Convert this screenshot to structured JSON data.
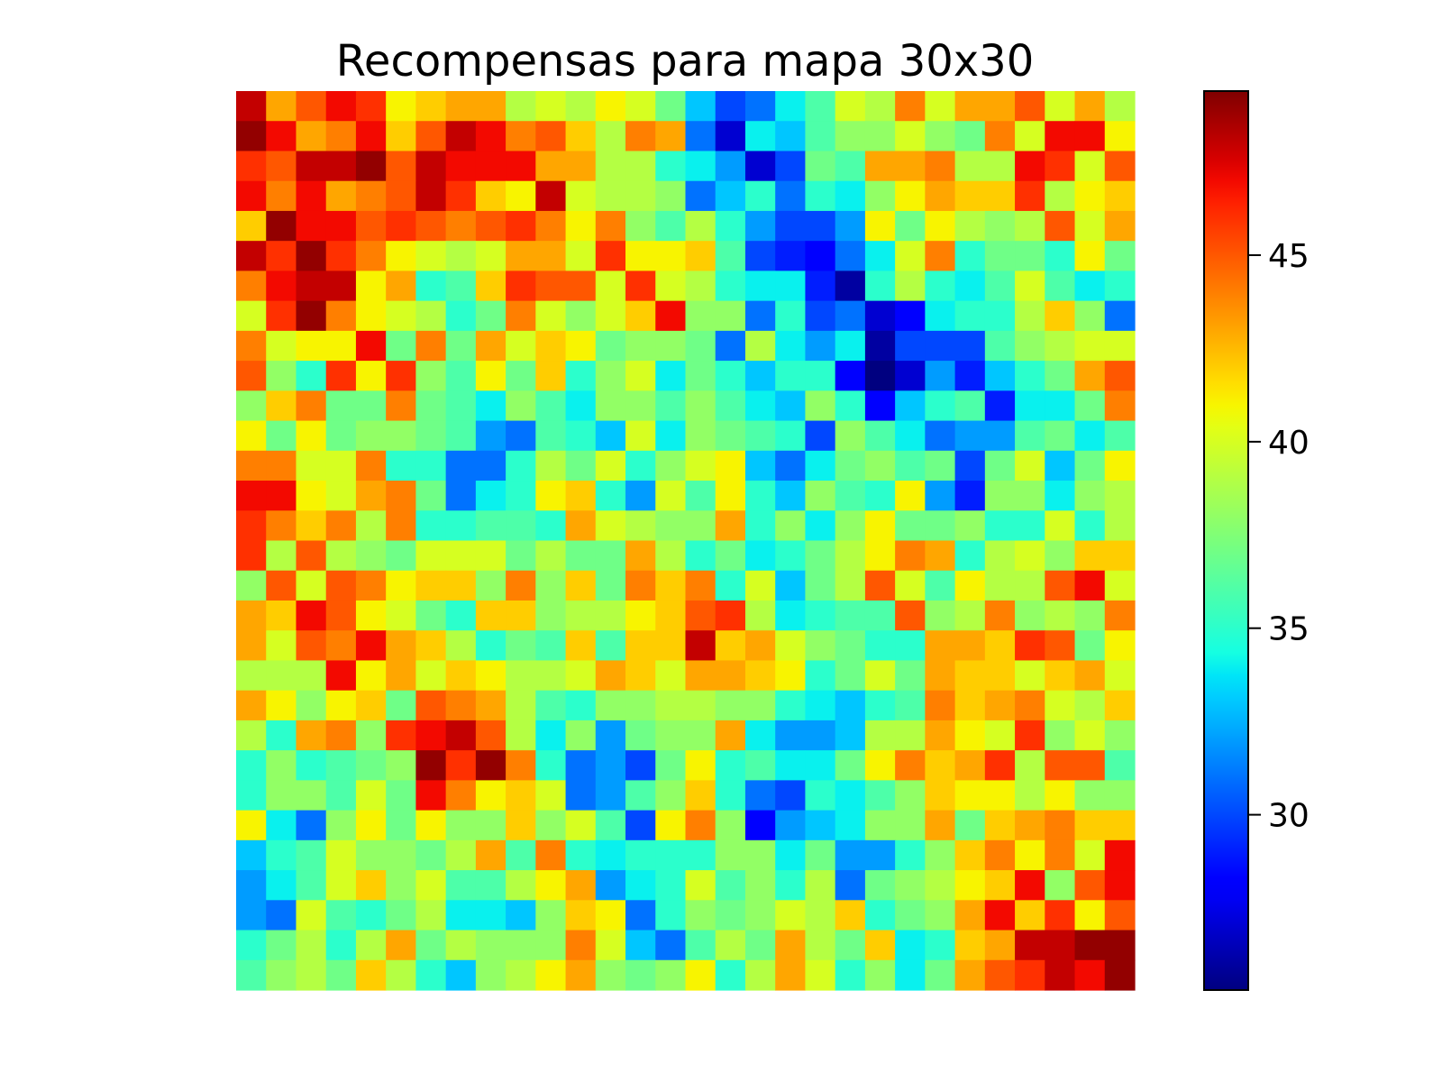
{
  "chart_data": {
    "type": "heatmap",
    "title": "Recompensas para mapa 30x30",
    "xlabel": "",
    "ylabel": "",
    "rows": 30,
    "cols": 30,
    "colormap": "jet",
    "vmin": 25.3,
    "vmax": 49.4,
    "colorbar": {
      "ticks": [
        30,
        35,
        40,
        45
      ],
      "labels": [
        "30",
        "35",
        "40",
        "45"
      ],
      "position": "right"
    },
    "axes_visible": false,
    "values": [
      [
        48,
        43,
        45,
        47,
        46,
        41,
        42,
        43,
        43,
        39,
        40,
        39,
        41,
        40,
        37,
        33,
        30,
        31,
        34,
        36,
        40,
        39,
        44,
        40,
        43,
        43,
        45,
        40,
        43,
        39
      ],
      [
        49,
        47,
        43,
        44,
        47,
        42,
        45,
        48,
        47,
        44,
        45,
        42,
        39,
        44,
        43,
        31,
        27,
        34,
        33,
        36,
        38,
        38,
        40,
        38,
        37,
        44,
        40,
        47,
        47,
        41
      ],
      [
        46,
        45,
        48,
        48,
        49,
        45,
        48,
        47,
        47,
        47,
        43,
        43,
        39,
        39,
        35,
        34,
        32,
        27,
        30,
        37,
        36,
        43,
        43,
        44,
        39,
        39,
        47,
        46,
        40,
        45
      ],
      [
        47,
        44,
        47,
        43,
        44,
        45,
        48,
        46,
        42,
        41,
        48,
        40,
        39,
        39,
        38,
        31,
        33,
        35,
        31,
        35,
        34,
        38,
        41,
        43,
        42,
        42,
        46,
        39,
        41,
        42
      ],
      [
        42,
        49,
        47,
        47,
        45,
        46,
        45,
        44,
        45,
        46,
        44,
        41,
        44,
        38,
        36,
        39,
        35,
        32,
        30,
        30,
        32,
        41,
        37,
        41,
        39,
        38,
        39,
        45,
        40,
        43
      ],
      [
        48,
        46,
        49,
        46,
        44,
        41,
        40,
        39,
        40,
        43,
        43,
        40,
        46,
        41,
        41,
        42,
        36,
        30,
        29,
        28,
        31,
        34,
        40,
        44,
        35,
        37,
        37,
        35,
        41,
        37
      ],
      [
        44,
        47,
        48,
        48,
        41,
        43,
        35,
        36,
        42,
        46,
        45,
        45,
        40,
        46,
        40,
        39,
        35,
        34,
        34,
        29,
        26,
        35,
        39,
        35,
        34,
        36,
        40,
        36,
        34,
        35
      ],
      [
        40,
        46,
        49,
        44,
        41,
        40,
        39,
        35,
        37,
        44,
        40,
        38,
        40,
        42,
        47,
        38,
        38,
        31,
        35,
        30,
        31,
        27,
        28,
        34,
        35,
        35,
        39,
        42,
        38,
        31
      ],
      [
        44,
        40,
        41,
        41,
        47,
        37,
        44,
        37,
        43,
        40,
        42,
        41,
        37,
        38,
        38,
        37,
        31,
        39,
        34,
        32,
        34,
        26,
        30,
        30,
        30,
        36,
        38,
        39,
        40,
        40
      ],
      [
        45,
        38,
        35,
        46,
        41,
        46,
        38,
        36,
        41,
        37,
        42,
        35,
        38,
        40,
        34,
        37,
        35,
        33,
        35,
        35,
        28,
        25,
        27,
        32,
        29,
        33,
        35,
        37,
        43,
        45
      ],
      [
        38,
        42,
        44,
        37,
        37,
        44,
        37,
        36,
        34,
        38,
        36,
        34,
        38,
        38,
        36,
        38,
        36,
        34,
        33,
        38,
        35,
        28,
        33,
        35,
        36,
        29,
        34,
        34,
        37,
        44
      ],
      [
        41,
        37,
        41,
        37,
        38,
        38,
        37,
        36,
        32,
        31,
        36,
        35,
        33,
        40,
        34,
        38,
        37,
        36,
        35,
        30,
        38,
        36,
        34,
        31,
        32,
        32,
        36,
        37,
        34,
        36
      ],
      [
        44,
        44,
        40,
        40,
        44,
        35,
        35,
        31,
        31,
        35,
        39,
        37,
        40,
        35,
        38,
        40,
        41,
        33,
        31,
        34,
        37,
        38,
        36,
        37,
        30,
        37,
        40,
        33,
        37,
        41
      ],
      [
        47,
        47,
        41,
        40,
        43,
        44,
        37,
        31,
        34,
        35,
        41,
        42,
        35,
        32,
        40,
        36,
        41,
        35,
        33,
        38,
        36,
        35,
        41,
        32,
        29,
        38,
        38,
        34,
        38,
        39
      ],
      [
        46,
        44,
        42,
        44,
        39,
        44,
        35,
        35,
        36,
        36,
        35,
        43,
        40,
        39,
        38,
        38,
        43,
        35,
        38,
        34,
        38,
        41,
        37,
        37,
        38,
        35,
        35,
        40,
        35,
        39
      ],
      [
        46,
        39,
        45,
        39,
        38,
        37,
        40,
        40,
        40,
        37,
        39,
        37,
        37,
        43,
        39,
        35,
        37,
        34,
        35,
        37,
        39,
        41,
        44,
        43,
        35,
        39,
        40,
        38,
        42,
        42
      ],
      [
        38,
        45,
        40,
        45,
        44,
        41,
        42,
        42,
        38,
        44,
        38,
        42,
        37,
        44,
        42,
        44,
        35,
        40,
        33,
        37,
        39,
        45,
        40,
        36,
        41,
        39,
        39,
        45,
        47,
        40
      ],
      [
        43,
        42,
        47,
        45,
        41,
        40,
        37,
        35,
        42,
        42,
        38,
        39,
        39,
        41,
        42,
        45,
        46,
        39,
        34,
        35,
        36,
        36,
        45,
        38,
        39,
        44,
        38,
        39,
        38,
        44
      ],
      [
        43,
        40,
        45,
        44,
        47,
        43,
        42,
        39,
        35,
        37,
        36,
        42,
        36,
        42,
        42,
        48,
        42,
        43,
        40,
        38,
        37,
        35,
        35,
        43,
        43,
        42,
        46,
        45,
        37,
        41
      ],
      [
        39,
        39,
        39,
        47,
        41,
        43,
        40,
        42,
        41,
        39,
        39,
        40,
        43,
        42,
        40,
        43,
        43,
        42,
        41,
        35,
        37,
        40,
        37,
        43,
        42,
        42,
        40,
        42,
        43,
        40
      ],
      [
        43,
        41,
        38,
        41,
        42,
        37,
        45,
        44,
        43,
        39,
        36,
        35,
        38,
        38,
        39,
        39,
        38,
        38,
        35,
        34,
        33,
        35,
        36,
        44,
        42,
        43,
        44,
        40,
        39,
        42
      ],
      [
        39,
        35,
        43,
        44,
        38,
        46,
        47,
        48,
        45,
        39,
        34,
        38,
        32,
        37,
        38,
        38,
        43,
        34,
        32,
        32,
        33,
        39,
        39,
        43,
        41,
        40,
        46,
        38,
        40,
        38
      ],
      [
        35,
        38,
        35,
        36,
        37,
        38,
        49,
        46,
        49,
        44,
        35,
        31,
        32,
        30,
        37,
        41,
        35,
        36,
        34,
        34,
        37,
        41,
        44,
        42,
        43,
        46,
        39,
        45,
        45,
        36
      ],
      [
        35,
        38,
        38,
        36,
        40,
        37,
        47,
        44,
        41,
        42,
        40,
        31,
        32,
        36,
        38,
        42,
        35,
        31,
        30,
        35,
        34,
        36,
        38,
        42,
        41,
        41,
        39,
        41,
        38,
        38
      ],
      [
        41,
        34,
        31,
        38,
        41,
        37,
        41,
        38,
        38,
        42,
        38,
        40,
        36,
        30,
        41,
        44,
        38,
        28,
        32,
        33,
        34,
        38,
        38,
        43,
        37,
        42,
        43,
        44,
        42,
        42
      ],
      [
        33,
        35,
        36,
        40,
        38,
        38,
        37,
        39,
        43,
        36,
        44,
        35,
        34,
        35,
        35,
        35,
        38,
        38,
        34,
        37,
        32,
        32,
        35,
        38,
        42,
        44,
        41,
        44,
        40,
        47
      ],
      [
        32,
        34,
        36,
        40,
        42,
        38,
        40,
        36,
        36,
        39,
        41,
        43,
        32,
        34,
        35,
        40,
        36,
        38,
        35,
        39,
        31,
        37,
        38,
        39,
        41,
        42,
        47,
        38,
        45,
        47
      ],
      [
        32,
        31,
        40,
        36,
        35,
        37,
        39,
        34,
        34,
        33,
        38,
        42,
        41,
        31,
        35,
        38,
        37,
        38,
        40,
        39,
        42,
        35,
        37,
        38,
        43,
        47,
        42,
        46,
        41,
        45
      ],
      [
        35,
        37,
        39,
        35,
        39,
        43,
        37,
        39,
        38,
        38,
        38,
        44,
        40,
        33,
        31,
        36,
        39,
        37,
        43,
        39,
        37,
        42,
        34,
        35,
        42,
        43,
        48,
        48,
        49,
        49
      ],
      [
        36,
        38,
        39,
        37,
        42,
        39,
        35,
        33,
        38,
        39,
        41,
        43,
        38,
        37,
        38,
        41,
        35,
        39,
        43,
        40,
        35,
        38,
        34,
        37,
        43,
        45,
        46,
        48,
        47,
        49
      ]
    ]
  }
}
